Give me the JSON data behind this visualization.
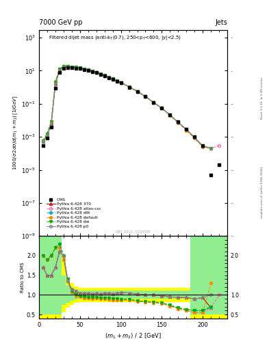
{
  "title_left": "7000 GeV pp",
  "title_right": "Jets",
  "plot_title": "Filtered dijet mass (anti-k_{T}(0.7), 2500<p_{T}<600, |y|<2.5)",
  "watermark": "CMS_2013_I1224539",
  "side_text": "mcplots.cern.ch [arXiv:1306.3436]",
  "rivet_text": "Rivet 3.1.10, ≥ 3.3M events",
  "cms_x": [
    5,
    10,
    15,
    20,
    25,
    30,
    35,
    40,
    45,
    50,
    55,
    60,
    65,
    70,
    75,
    80,
    85,
    90,
    95,
    100,
    110,
    120,
    130,
    140,
    150,
    160,
    170,
    180,
    190,
    200,
    210,
    220
  ],
  "cms_y": [
    0.0003,
    0.0008,
    0.004,
    0.9,
    8.0,
    14.0,
    15.0,
    15.0,
    14.5,
    13.5,
    12.0,
    10.5,
    9.0,
    7.5,
    6.0,
    4.8,
    3.8,
    3.0,
    2.3,
    1.8,
    1.0,
    0.55,
    0.27,
    0.12,
    0.055,
    0.022,
    0.008,
    0.003,
    0.001,
    0.0003,
    5e-06,
    2e-05
  ],
  "pythia_370_y": [
    0.0005,
    0.0012,
    0.006,
    1.5,
    10.5,
    17.0,
    17.5,
    16.5,
    15.5,
    14.0,
    12.5,
    11.0,
    9.2,
    7.8,
    6.2,
    5.0,
    4.0,
    3.1,
    2.4,
    1.9,
    1.05,
    0.56,
    0.27,
    0.12,
    0.054,
    0.021,
    0.0075,
    0.0028,
    0.0009,
    0.00028,
    0.0002,
    null
  ],
  "pythia_atlas_y": [
    0.0006,
    0.0015,
    0.008,
    2.0,
    12.0,
    18.0,
    18.0,
    17.0,
    16.0,
    14.5,
    13.0,
    11.2,
    9.5,
    8.0,
    6.4,
    5.1,
    4.1,
    3.2,
    2.45,
    1.92,
    1.06,
    0.57,
    0.27,
    0.12,
    0.053,
    0.02,
    0.007,
    0.0025,
    0.0008,
    0.00025,
    0.0002,
    0.0003
  ],
  "pythia_d6t_y": [
    0.0006,
    0.0015,
    0.008,
    2.0,
    12.5,
    18.5,
    18.5,
    17.5,
    16.5,
    15.0,
    13.2,
    11.5,
    9.8,
    8.2,
    6.6,
    5.2,
    4.2,
    3.3,
    2.5,
    1.95,
    1.08,
    0.57,
    0.28,
    0.12,
    0.054,
    0.021,
    0.0075,
    0.0028,
    0.0009,
    0.00028,
    0.0002,
    null
  ],
  "pythia_default_y": [
    0.0006,
    0.0015,
    0.008,
    2.0,
    12.0,
    18.0,
    18.0,
    17.0,
    16.0,
    14.5,
    13.0,
    11.2,
    9.5,
    8.0,
    6.4,
    5.1,
    4.1,
    3.2,
    2.45,
    1.92,
    1.06,
    0.57,
    0.27,
    0.12,
    0.053,
    0.02,
    0.007,
    0.0025,
    0.0008,
    0.00025,
    0.0002,
    null
  ],
  "pythia_dw_y": [
    0.0006,
    0.0015,
    0.008,
    2.0,
    12.5,
    18.5,
    18.5,
    17.5,
    16.5,
    15.0,
    13.2,
    11.5,
    9.8,
    8.2,
    6.6,
    5.2,
    4.2,
    3.3,
    2.5,
    1.95,
    1.08,
    0.57,
    0.28,
    0.12,
    0.054,
    0.021,
    0.0075,
    0.0028,
    0.0009,
    0.00028,
    0.0002,
    null
  ],
  "pythia_p0_y": [
    0.0005,
    0.0012,
    0.006,
    1.5,
    10.5,
    17.0,
    17.5,
    16.5,
    15.5,
    14.0,
    12.5,
    11.0,
    9.2,
    7.8,
    6.2,
    5.0,
    4.0,
    3.1,
    2.4,
    1.9,
    1.05,
    0.56,
    0.27,
    0.12,
    0.054,
    0.021,
    0.0075,
    0.0028,
    0.0009,
    0.00028,
    0.0002,
    null
  ],
  "c370": "#cc0000",
  "catlas": "#ff69b4",
  "cd6t": "#00bbbb",
  "cdefault": "#ff8c00",
  "cdw": "#00aa00",
  "cp0": "#888888",
  "ratio_370": [
    1.7,
    1.5,
    1.5,
    1.7,
    2.1,
    2.0,
    1.35,
    1.15,
    1.1,
    1.04,
    1.04,
    1.05,
    1.03,
    1.04,
    1.03,
    1.04,
    1.05,
    1.03,
    1.04,
    1.06,
    1.05,
    1.02,
    1.0,
    1.0,
    0.98,
    0.95,
    0.94,
    0.93,
    0.9,
    0.93,
    0.67,
    null
  ],
  "ratio_atlas": [
    2.0,
    1.9,
    2.0,
    2.2,
    2.2,
    1.9,
    1.35,
    1.07,
    0.97,
    0.96,
    0.92,
    0.92,
    0.91,
    0.92,
    0.91,
    0.9,
    0.89,
    0.87,
    0.87,
    0.87,
    0.87,
    0.84,
    0.82,
    0.8,
    0.78,
    0.72,
    0.65,
    0.6,
    0.55,
    0.55,
    0.68,
    1.0
  ],
  "ratio_d6t": [
    2.0,
    1.9,
    2.0,
    2.2,
    2.3,
    2.0,
    1.4,
    1.1,
    1.0,
    0.97,
    0.95,
    0.94,
    0.93,
    0.93,
    0.92,
    0.92,
    0.92,
    0.9,
    0.9,
    0.89,
    0.89,
    0.85,
    0.83,
    0.82,
    0.8,
    0.74,
    0.67,
    0.63,
    0.6,
    0.6,
    0.7,
    null
  ],
  "ratio_default": [
    2.0,
    1.9,
    2.0,
    2.2,
    2.2,
    1.9,
    1.35,
    1.07,
    0.97,
    0.96,
    0.92,
    0.92,
    0.91,
    0.92,
    0.91,
    0.9,
    0.89,
    0.87,
    0.87,
    0.87,
    0.87,
    0.84,
    0.82,
    0.8,
    0.78,
    0.72,
    0.65,
    0.6,
    0.55,
    0.55,
    1.3,
    null
  ],
  "ratio_dw": [
    2.0,
    1.9,
    2.0,
    2.2,
    2.3,
    2.0,
    1.4,
    1.1,
    1.0,
    0.97,
    0.95,
    0.94,
    0.93,
    0.93,
    0.92,
    0.92,
    0.92,
    0.9,
    0.9,
    0.89,
    0.89,
    0.85,
    0.83,
    0.82,
    0.8,
    0.74,
    0.67,
    0.63,
    0.6,
    0.6,
    0.7,
    null
  ],
  "ratio_p0": [
    1.7,
    1.5,
    1.5,
    1.7,
    2.1,
    2.0,
    1.35,
    1.15,
    1.1,
    1.04,
    1.04,
    1.05,
    1.03,
    1.04,
    1.03,
    1.04,
    1.05,
    1.03,
    1.04,
    1.06,
    1.05,
    1.02,
    1.0,
    1.0,
    0.98,
    0.95,
    0.94,
    0.93,
    0.9,
    0.93,
    1.0,
    null
  ],
  "band_x": [
    0,
    7.5,
    12.5,
    17.5,
    22.5,
    27.5,
    32.5,
    37.5,
    42.5,
    47.5,
    52.5,
    57.5,
    62.5,
    67.5,
    72.5,
    77.5,
    82.5,
    87.5,
    92.5,
    97.5,
    105,
    115,
    125,
    135,
    145,
    155,
    165,
    175,
    185,
    195,
    205,
    215,
    230
  ],
  "ylo_green": [
    0.5,
    0.5,
    0.5,
    0.5,
    0.5,
    0.75,
    0.8,
    0.85,
    0.88,
    0.9,
    0.9,
    0.9,
    0.9,
    0.9,
    0.9,
    0.9,
    0.9,
    0.9,
    0.9,
    0.9,
    0.9,
    0.9,
    0.9,
    0.9,
    0.9,
    0.9,
    0.9,
    0.9,
    0.5,
    0.5,
    0.5,
    0.5
  ],
  "yhi_green": [
    2.5,
    2.5,
    2.5,
    2.5,
    2.5,
    1.5,
    1.25,
    1.18,
    1.15,
    1.12,
    1.12,
    1.12,
    1.12,
    1.12,
    1.12,
    1.12,
    1.12,
    1.12,
    1.12,
    1.12,
    1.12,
    1.12,
    1.12,
    1.12,
    1.12,
    1.12,
    1.12,
    1.12,
    2.5,
    2.5,
    2.5,
    2.5
  ],
  "ylo_yellow": [
    0.4,
    0.4,
    0.4,
    0.4,
    0.4,
    0.55,
    0.68,
    0.75,
    0.8,
    0.82,
    0.82,
    0.82,
    0.82,
    0.82,
    0.82,
    0.82,
    0.82,
    0.82,
    0.82,
    0.82,
    0.82,
    0.82,
    0.82,
    0.82,
    0.82,
    0.82,
    0.82,
    0.82,
    0.4,
    0.4,
    0.4,
    0.4
  ],
  "yhi_yellow": [
    2.5,
    2.5,
    2.5,
    2.5,
    2.5,
    2.0,
    1.45,
    1.3,
    1.22,
    1.18,
    1.18,
    1.18,
    1.18,
    1.18,
    1.18,
    1.18,
    1.18,
    1.18,
    1.18,
    1.18,
    1.18,
    1.18,
    1.18,
    1.18,
    1.18,
    1.18,
    1.18,
    1.18,
    2.5,
    2.5,
    2.5,
    2.5
  ],
  "xlim": [
    0,
    230
  ],
  "ylim_main": [
    1e-09,
    3000.0
  ],
  "ylim_ratio": [
    0.4,
    2.5
  ]
}
